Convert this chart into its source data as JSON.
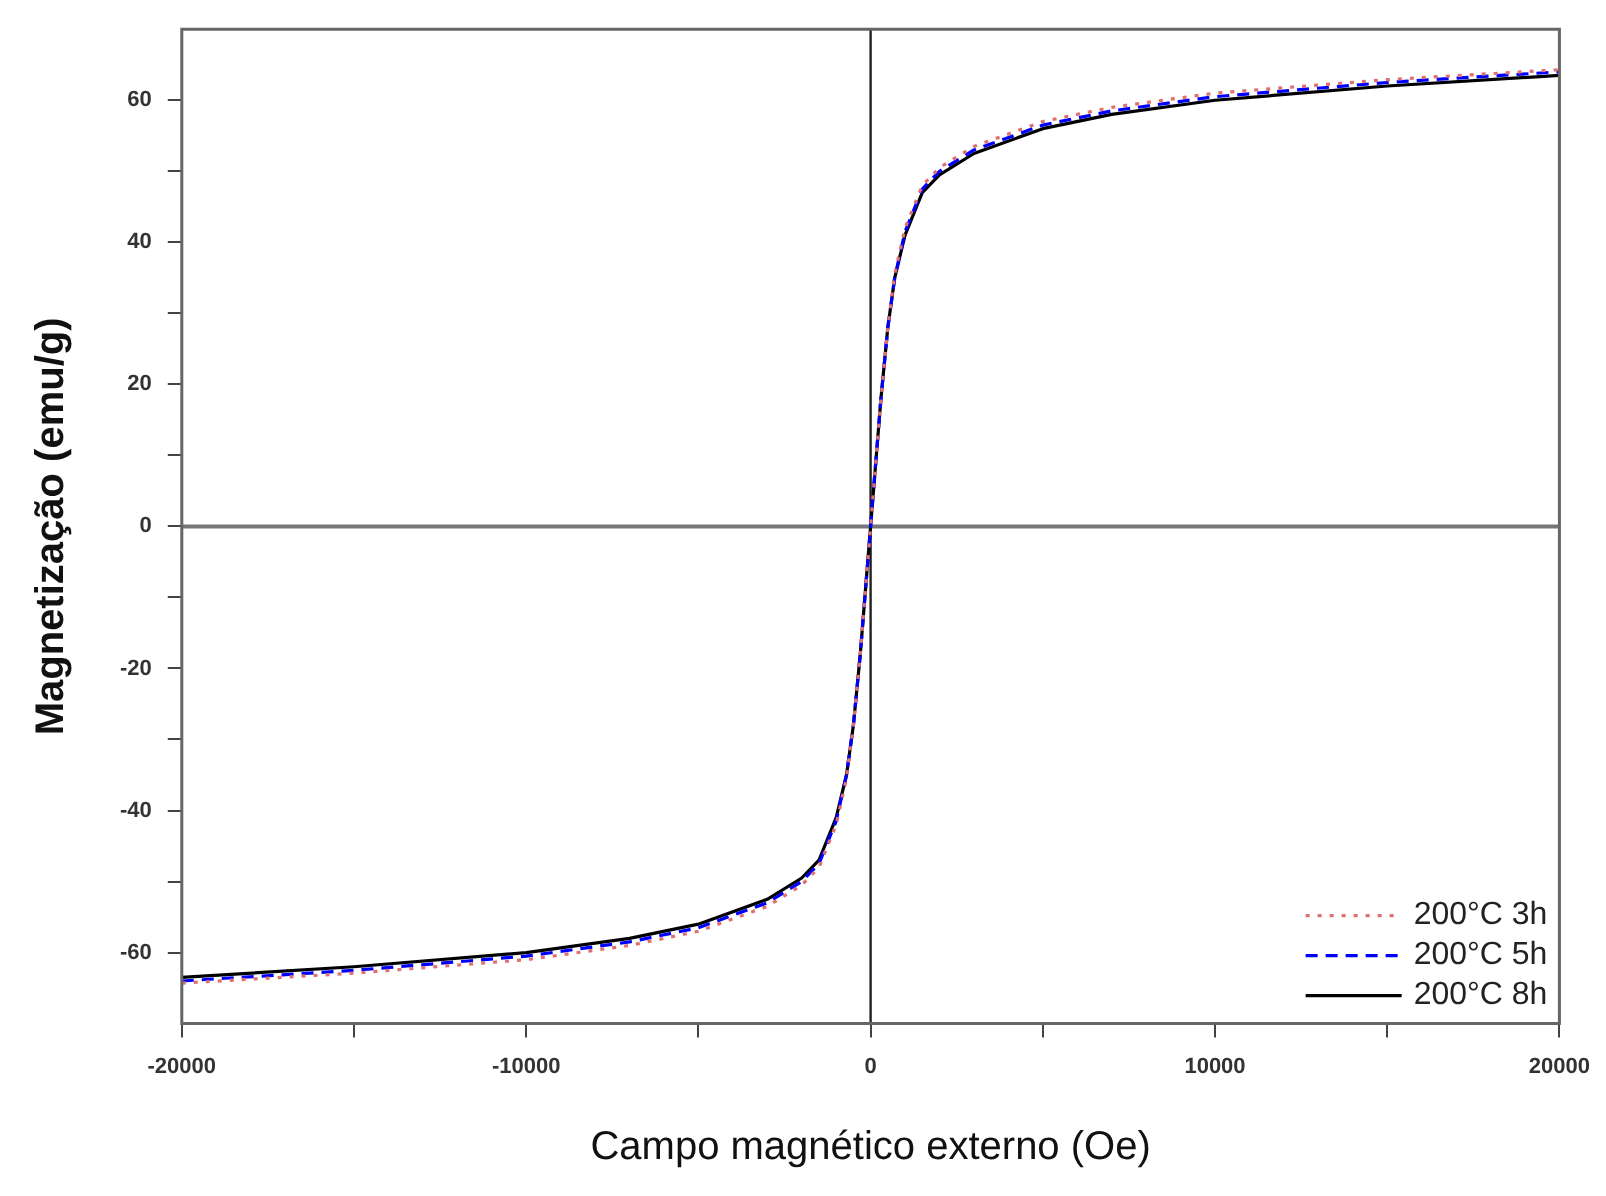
{
  "chart_data": {
    "type": "line",
    "xlabel": "Campo magnético externo (Oe)",
    "ylabel": "Magnetização (emu/g)",
    "x": [
      -20000,
      -15000,
      -10000,
      -7000,
      -5000,
      -3000,
      -2000,
      -1500,
      -1000,
      -700,
      -500,
      -300,
      0,
      300,
      500,
      700,
      1000,
      1500,
      2000,
      3000,
      5000,
      7000,
      10000,
      15000,
      20000
    ],
    "series": [
      {
        "name": "200°C 3h",
        "color": "#e07070",
        "line_style": "dotted",
        "values": [
          -64.3,
          -62.9,
          -61,
          -59,
          -57,
          -53.5,
          -50.5,
          -48,
          -42,
          -35.5,
          -28,
          -18,
          0,
          18,
          28,
          35.5,
          42,
          48,
          50.5,
          53.5,
          57,
          59,
          61,
          62.9,
          64.3
        ]
      },
      {
        "name": "200°C 5h",
        "color": "#0000ff",
        "line_style": "dashed",
        "values": [
          -64,
          -62.5,
          -60.5,
          -58.5,
          -56.5,
          -53,
          -50,
          -47.5,
          -41.5,
          -35,
          -28,
          -18,
          0,
          18,
          28,
          35,
          41.5,
          47.5,
          50,
          53,
          56.5,
          58.5,
          60.5,
          62.5,
          64
        ]
      },
      {
        "name": "200°C 8h",
        "color": "#000000",
        "line_style": "solid",
        "values": [
          -63.5,
          -62,
          -60,
          -58,
          -56,
          -52.5,
          -49.5,
          -47,
          -41,
          -35,
          -28,
          -18,
          0,
          18,
          28,
          35,
          41,
          47,
          49.5,
          52.5,
          56,
          58,
          60,
          62,
          63.5
        ]
      }
    ],
    "xlim": [
      -20000,
      20000
    ],
    "xticks": [
      -20000,
      {
        "value": -15000,
        "label": null
      },
      -10000,
      {
        "value": -5000,
        "label": null
      },
      0,
      {
        "value": 5000,
        "label": null
      },
      10000,
      {
        "value": 15000,
        "label": null
      },
      20000
    ],
    "ylim": [
      -70,
      70
    ],
    "yticks": [
      -60,
      {
        "value": -50,
        "label": null
      },
      -40,
      {
        "value": -30,
        "label": null
      },
      -20,
      {
        "value": -10,
        "label": null
      },
      0,
      {
        "value": 10,
        "label": null
      },
      20,
      {
        "value": 30,
        "label": null
      },
      40,
      {
        "value": 50,
        "label": null
      },
      60
    ],
    "ref_lines": [
      {
        "axis": "x",
        "value": 0,
        "color": "#222222"
      },
      {
        "axis": "y",
        "value": 0,
        "color": "#777777"
      }
    ],
    "legend": "bottom right",
    "grid": false,
    "marker": "none"
  }
}
